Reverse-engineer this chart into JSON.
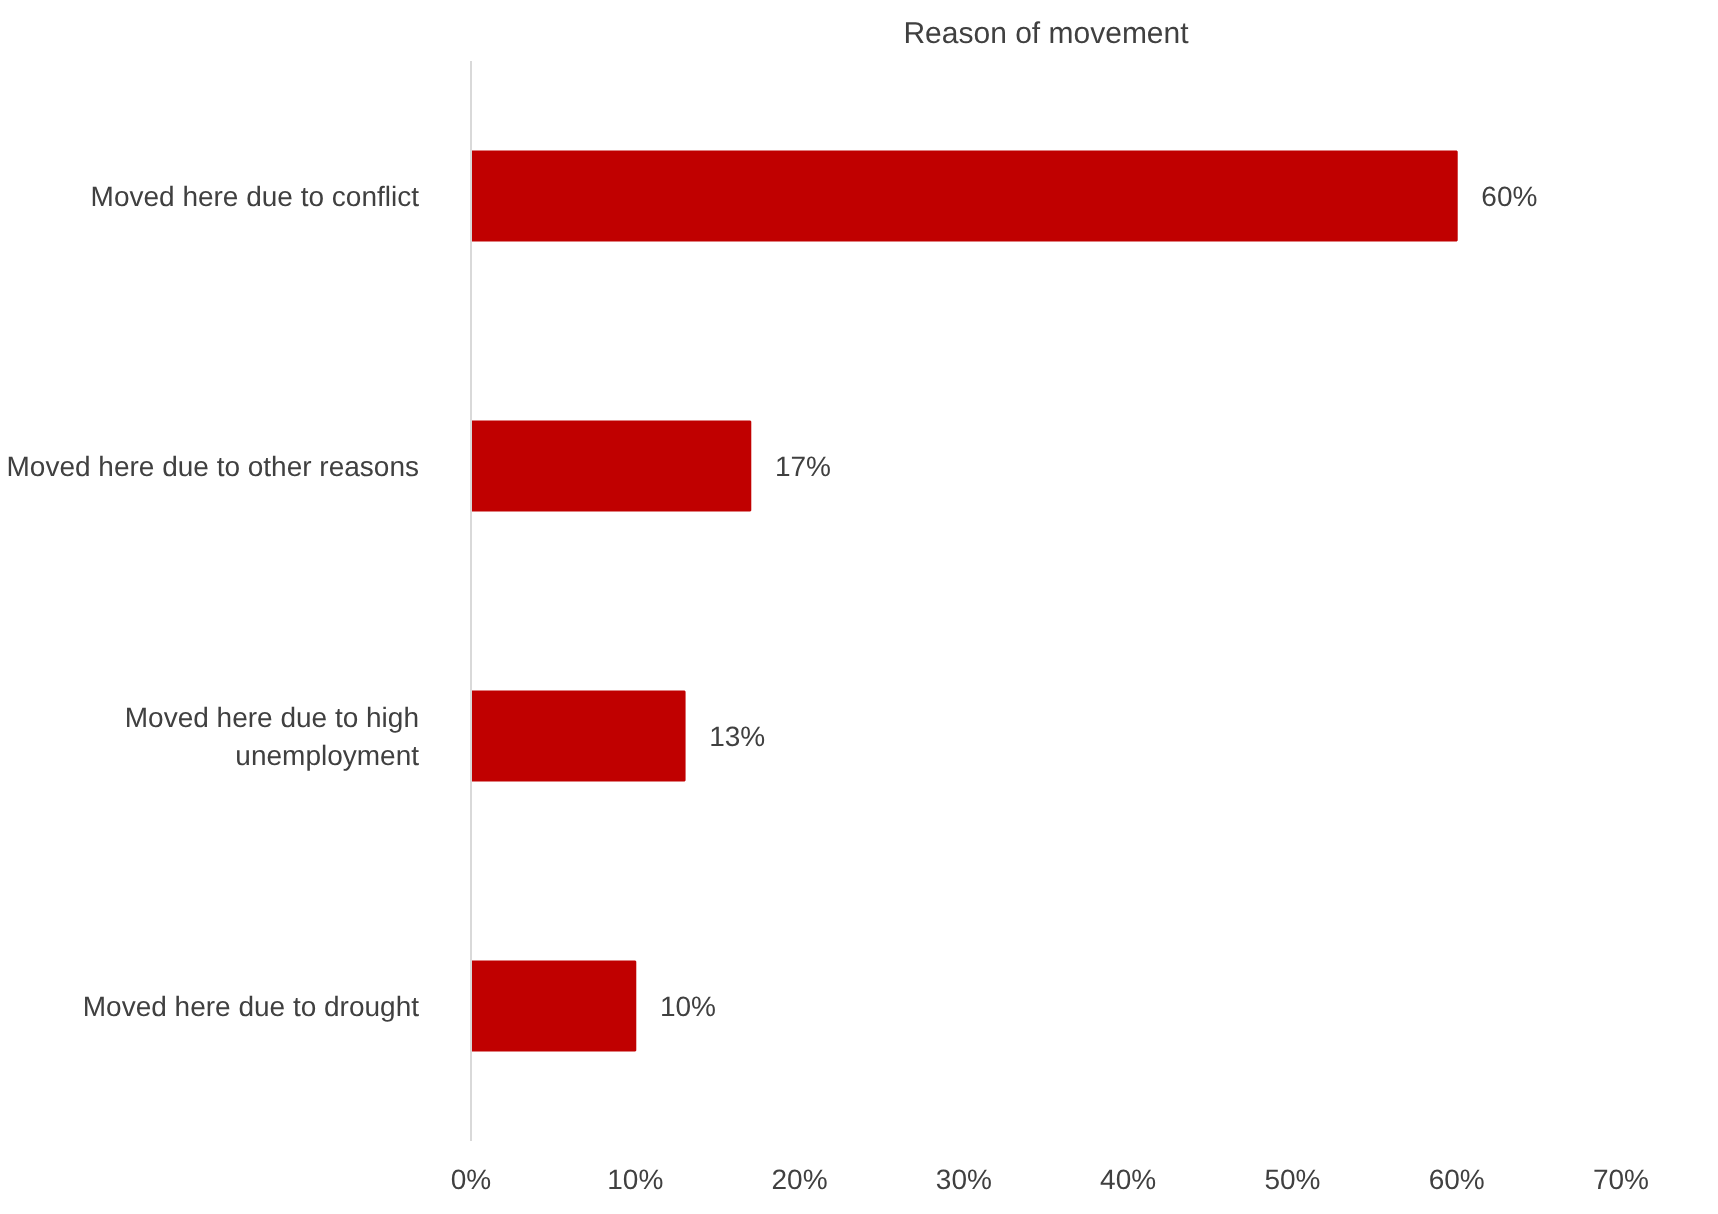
{
  "chart_data": {
    "type": "bar",
    "orientation": "horizontal",
    "title": "Reason of movement",
    "categories": [
      "Moved here due to conflict",
      "Moved here due to other reasons",
      "Moved here due to high unemployment",
      "Moved here due to drought"
    ],
    "values": [
      60,
      17,
      13,
      10
    ],
    "color": "#c00000",
    "value_labels": [
      "60%",
      "17%",
      "13%",
      "10%"
    ],
    "xlim": [
      0,
      70
    ],
    "xticks": [
      {
        "value": 0,
        "label": "0%"
      },
      {
        "value": 10,
        "label": "10%"
      },
      {
        "value": 20,
        "label": "20%"
      },
      {
        "value": 30,
        "label": "30%"
      },
      {
        "value": 40,
        "label": "40%"
      },
      {
        "value": 50,
        "label": "50%"
      },
      {
        "value": 60,
        "label": "60%"
      },
      {
        "value": 70,
        "label": "70%"
      }
    ],
    "grid": false
  }
}
